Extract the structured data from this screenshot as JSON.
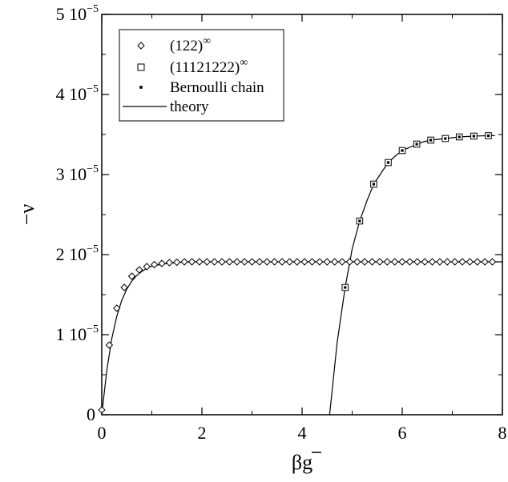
{
  "chart_data": {
    "type": "scatter",
    "xlabel": "βg",
    "ylabel": "−ν",
    "xlim": [
      0,
      8
    ],
    "ylim": [
      0,
      5e-05
    ],
    "grid": false,
    "legend_position": "top-left",
    "x_ticks": [
      {
        "value": 0,
        "label": "0"
      },
      {
        "value": 2,
        "label": "2"
      },
      {
        "value": 4,
        "label": "4"
      },
      {
        "value": 6,
        "label": "6"
      },
      {
        "value": 8,
        "label": "8"
      }
    ],
    "y_ticks": [
      {
        "value": 0,
        "mantissa": "0",
        "exponent": ""
      },
      {
        "value": 1e-05,
        "mantissa": "1 10",
        "exponent": "−5"
      },
      {
        "value": 2e-05,
        "mantissa": "2 10",
        "exponent": "−5"
      },
      {
        "value": 3e-05,
        "mantissa": "3 10",
        "exponent": "−5"
      },
      {
        "value": 4e-05,
        "mantissa": "4 10",
        "exponent": "−5"
      },
      {
        "value": 5e-05,
        "mantissa": "5 10",
        "exponent": "−5"
      }
    ],
    "legend": [
      {
        "label": "(122)",
        "sup": "∞",
        "marker": "diamond"
      },
      {
        "label": "(11121222)",
        "sup": "∞",
        "marker": "square"
      },
      {
        "label": "Bernoulli chain",
        "sup": "",
        "marker": "dot"
      },
      {
        "label": "theory",
        "sup": "",
        "marker": "line"
      }
    ],
    "series": [
      {
        "marker": "diamond",
        "x": [
          0.0,
          0.15,
          0.3,
          0.45,
          0.6,
          0.75,
          0.9,
          1.05,
          1.2,
          1.35,
          1.5,
          1.65,
          1.8,
          1.95,
          2.1,
          2.25,
          2.4,
          2.55,
          2.7,
          2.85,
          3.0,
          3.15,
          3.3,
          3.45,
          3.6,
          3.75,
          3.9,
          4.05,
          4.2,
          4.35,
          4.5,
          4.65,
          4.8,
          4.95,
          5.1,
          5.25,
          5.4,
          5.55,
          5.7,
          5.85,
          6.0,
          6.15,
          6.3,
          6.45,
          6.6,
          6.75,
          6.9,
          7.05,
          7.2,
          7.35,
          7.5,
          7.65,
          7.8
        ],
        "y": [
          6e-07,
          8.7e-06,
          1.33e-05,
          1.59e-05,
          1.73e-05,
          1.81e-05,
          1.85e-05,
          1.875e-05,
          1.89e-05,
          1.9e-05,
          1.905e-05,
          1.91e-05,
          1.91e-05,
          1.91e-05,
          1.91e-05,
          1.91e-05,
          1.91e-05,
          1.91e-05,
          1.91e-05,
          1.91e-05,
          1.91e-05,
          1.91e-05,
          1.91e-05,
          1.91e-05,
          1.91e-05,
          1.91e-05,
          1.91e-05,
          1.91e-05,
          1.91e-05,
          1.91e-05,
          1.91e-05,
          1.91e-05,
          1.91e-05,
          1.91e-05,
          1.91e-05,
          1.91e-05,
          1.91e-05,
          1.91e-05,
          1.91e-05,
          1.91e-05,
          1.91e-05,
          1.91e-05,
          1.91e-05,
          1.91e-05,
          1.91e-05,
          1.91e-05,
          1.91e-05,
          1.91e-05,
          1.91e-05,
          1.91e-05,
          1.91e-05,
          1.91e-05,
          1.91e-05
        ]
      },
      {
        "marker": "square",
        "x": [
          4.86,
          5.15,
          5.43,
          5.72,
          6.0,
          6.29,
          6.57,
          6.86,
          7.14,
          7.43,
          7.72
        ],
        "y": [
          1.59e-05,
          2.42e-05,
          2.88e-05,
          3.15e-05,
          3.3e-05,
          3.38e-05,
          3.43e-05,
          3.45e-05,
          3.47e-05,
          3.48e-05,
          3.485e-05
        ]
      },
      {
        "marker": "dot",
        "x": [
          4.86,
          5.15,
          5.43,
          5.72,
          6.0,
          6.29,
          6.57,
          6.86,
          7.14,
          7.43,
          7.72
        ],
        "y": [
          1.59e-05,
          2.42e-05,
          2.88e-05,
          3.15e-05,
          3.3e-05,
          3.38e-05,
          3.43e-05,
          3.45e-05,
          3.47e-05,
          3.48e-05,
          3.485e-05
        ]
      },
      {
        "marker": "line",
        "x": [
          0.0,
          0.1,
          0.2,
          0.3,
          0.4,
          0.5,
          0.6,
          0.7,
          0.8,
          0.9,
          1.0,
          1.2,
          1.4,
          1.6,
          1.8,
          2.0,
          3.0,
          4.0,
          5.0,
          6.0,
          7.0,
          8.0
        ],
        "y": [
          0.0,
          5.5e-06,
          9.5e-06,
          1.23e-05,
          1.43e-05,
          1.57e-05,
          1.67e-05,
          1.74e-05,
          1.79e-05,
          1.83e-05,
          1.855e-05,
          1.88e-05,
          1.895e-05,
          1.905e-05,
          1.91e-05,
          1.91e-05,
          1.91e-05,
          1.91e-05,
          1.91e-05,
          1.91e-05,
          1.91e-05,
          1.91e-05
        ]
      },
      {
        "marker": "line",
        "x": [
          4.55,
          4.7,
          4.86,
          5.0,
          5.15,
          5.3,
          5.43,
          5.6,
          5.72,
          5.86,
          6.0,
          6.15,
          6.29,
          6.43,
          6.57,
          6.72,
          6.86,
          7.0,
          7.14,
          7.29,
          7.43,
          7.58,
          7.72,
          7.85
        ],
        "y": [
          0.0,
          9e-06,
          1.59e-05,
          2.07e-05,
          2.42e-05,
          2.68e-05,
          2.88e-05,
          3.04e-05,
          3.15e-05,
          3.23e-05,
          3.3e-05,
          3.34e-05,
          3.38e-05,
          3.41e-05,
          3.43e-05,
          3.44e-05,
          3.45e-05,
          3.46e-05,
          3.47e-05,
          3.475e-05,
          3.48e-05,
          3.483e-05,
          3.485e-05,
          3.487e-05
        ]
      }
    ]
  }
}
